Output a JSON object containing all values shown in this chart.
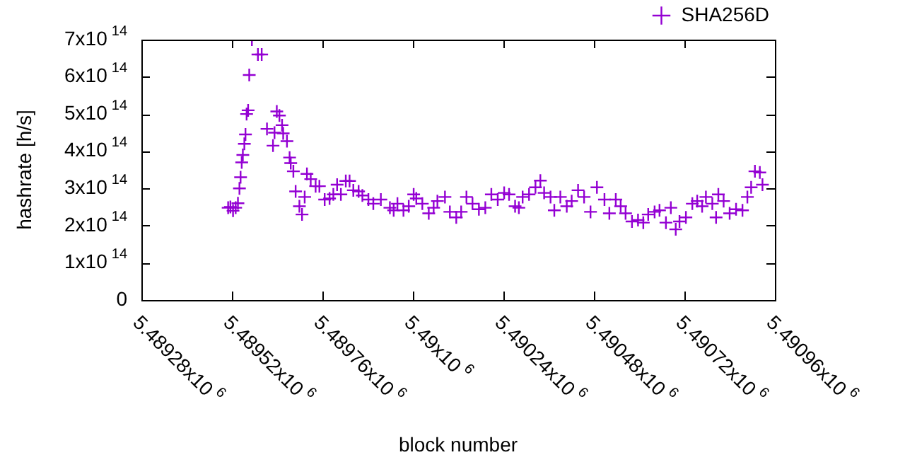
{
  "chart_data": {
    "type": "scatter",
    "xlabel": "block number",
    "ylabel": "hashrate [h/s]",
    "xlim": [
      5489280,
      5490960
    ],
    "xticks": [
      {
        "value": 5489280,
        "label": "5.48928x10$^{6}$"
      },
      {
        "value": 5489520,
        "label": "5.48952x10$^{6}$"
      },
      {
        "value": 5489760,
        "label": "5.48976x10$^{6}$"
      },
      {
        "value": 5490000,
        "label": "5.49x10$^{6}$"
      },
      {
        "value": 5490240,
        "label": "5.49024x10$^{6}$"
      },
      {
        "value": 5490480,
        "label": "5.49048x10$^{6}$"
      },
      {
        "value": 5490720,
        "label": "5.49072x10$^{6}$"
      },
      {
        "value": 5490960,
        "label": "5.49096x10$^{6}$"
      }
    ],
    "ylim": [
      0,
      700000000000000.0
    ],
    "yticks": [
      0,
      {
        "value": 100000000000000.0,
        "label": "1x10$^{14}$"
      },
      {
        "value": 200000000000000.0,
        "label": "2x10$^{14}$"
      },
      {
        "value": 300000000000000.0,
        "label": "3x10$^{14}$"
      },
      {
        "value": 400000000000000.0,
        "label": "4x10$^{14}$"
      },
      {
        "value": 500000000000000.0,
        "label": "5x10$^{14}$"
      },
      {
        "value": 600000000000000.0,
        "label": "6x10$^{14}$"
      },
      {
        "value": 700000000000000.0,
        "label": "7x10$^{14}$"
      }
    ],
    "grid": false,
    "legend": "top right",
    "marker": "cross",
    "series": [
      {
        "name": "SHA256D",
        "color": "#9400d3",
        "x": [
          5489510,
          5489516,
          5489523,
          5489530,
          5489536,
          5489540,
          5489543,
          5489546,
          5489549,
          5489553,
          5489556,
          5489559,
          5489563,
          5489566,
          5489573,
          5489589,
          5489599,
          5489613,
          5489629,
          5489633,
          5489639,
          5489646,
          5489653,
          5489656,
          5489666,
          5489673,
          5489676,
          5489683,
          5489689,
          5489699,
          5489706,
          5489713,
          5489719,
          5489729,
          5489742,
          5489752,
          5489766,
          5489779,
          5489789,
          5489799,
          5489809,
          5489822,
          5489832,
          5489842,
          5489856,
          5489866,
          5489882,
          5489895,
          5489915,
          5489939,
          5489949,
          5489959,
          5489975,
          5489989,
          5490002,
          5490009,
          5490025,
          5490042,
          5490055,
          5490065,
          5490085,
          5490098,
          5490115,
          5490128,
          5490142,
          5490158,
          5490175,
          5490192,
          5490208,
          5490225,
          5490242,
          5490255,
          5490271,
          5490281,
          5490291,
          5490308,
          5490325,
          5490338,
          5490348,
          5490365,
          5490375,
          5490391,
          5490408,
          5490421,
          5490438,
          5490454,
          5490471,
          5490488,
          5490508,
          5490521,
          5490538,
          5490551,
          5490564,
          5490581,
          5490597,
          5490611,
          5490624,
          5490641,
          5490654,
          5490671,
          5490684,
          5490697,
          5490707,
          5490724,
          5490741,
          5490754,
          5490767,
          5490777,
          5490794,
          5490804,
          5490810,
          5490824,
          5490840,
          5490857,
          5490874,
          5490887,
          5490897,
          5490907,
          5490920,
          5490927
        ],
        "values": [
          248000000000000.0,
          250000000000000.0,
          240000000000000.0,
          248000000000000.0,
          260000000000000.0,
          300000000000000.0,
          330000000000000.0,
          370000000000000.0,
          390000000000000.0,
          420000000000000.0,
          445000000000000.0,
          500000000000000.0,
          510000000000000.0,
          605000000000000.0,
          700000000000000.0,
          660000000000000.0,
          660000000000000.0,
          460000000000000.0,
          415000000000000.0,
          450000000000000.0,
          507000000000000.0,
          496000000000000.0,
          470000000000000.0,
          448000000000000.0,
          427000000000000.0,
          383000000000000.0,
          368000000000000.0,
          346000000000000.0,
          292000000000000.0,
          252000000000000.0,
          230000000000000.0,
          277000000000000.0,
          339000000000000.0,
          325000000000000.0,
          306000000000000.0,
          306000000000000.0,
          270000000000000.0,
          273000000000000.0,
          284000000000000.0,
          310000000000000.0,
          284000000000000.0,
          320000000000000.0,
          320000000000000.0,
          295000000000000.0,
          292000000000000.0,
          281000000000000.0,
          270000000000000.0,
          259000000000000.0,
          270000000000000.0,
          248000000000000.0,
          241000000000000.0,
          259000000000000.0,
          241000000000000.0,
          252000000000000.0,
          284000000000000.0,
          273000000000000.0,
          259000000000000.0,
          233000000000000.0,
          248000000000000.0,
          266000000000000.0,
          277000000000000.0,
          237000000000000.0,
          222000000000000.0,
          237000000000000.0,
          277000000000000.0,
          259000000000000.0,
          244000000000000.0,
          248000000000000.0,
          284000000000000.0,
          270000000000000.0,
          288000000000000.0,
          284000000000000.0,
          252000000000000.0,
          248000000000000.0,
          277000000000000.0,
          284000000000000.0,
          303000000000000.0,
          321000000000000.0,
          288000000000000.0,
          277000000000000.0,
          241000000000000.0,
          277000000000000.0,
          252000000000000.0,
          266000000000000.0,
          295000000000000.0,
          277000000000000.0,
          237000000000000.0,
          303000000000000.0,
          270000000000000.0,
          233000000000000.0,
          270000000000000.0,
          252000000000000.0,
          233000000000000.0,
          211000000000000.0,
          215000000000000.0,
          208000000000000.0,
          230000000000000.0,
          237000000000000.0,
          241000000000000.0,
          208000000000000.0,
          248000000000000.0,
          190000000000000.0,
          211000000000000.0,
          222000000000000.0,
          259000000000000.0,
          266000000000000.0,
          252000000000000.0,
          277000000000000.0,
          259000000000000.0,
          222000000000000.0,
          284000000000000.0,
          266000000000000.0,
          233000000000000.0,
          244000000000000.0,
          241000000000000.0,
          277000000000000.0,
          303000000000000.0,
          346000000000000.0,
          343000000000000.0,
          310000000000000.0
        ]
      }
    ]
  }
}
